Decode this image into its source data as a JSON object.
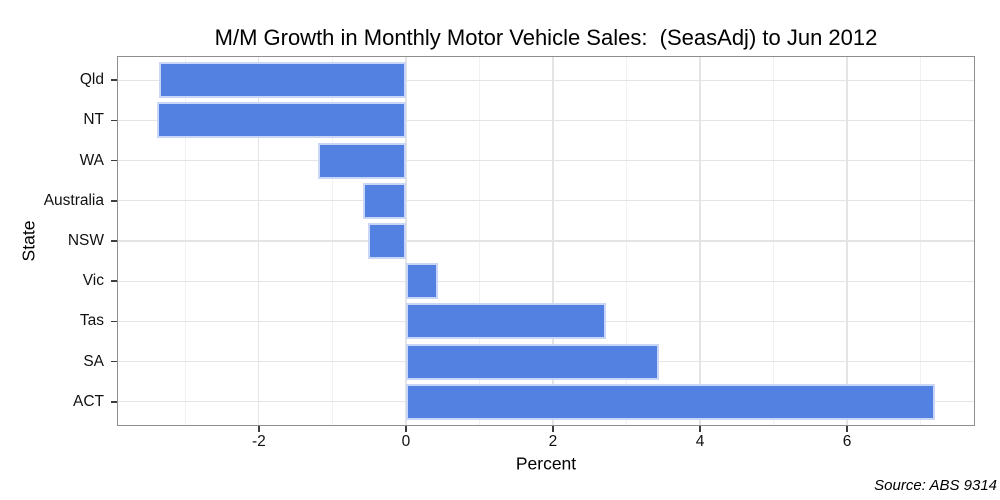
{
  "chart_data": {
    "type": "bar",
    "orientation": "horizontal",
    "title": "M/M Growth in Monthly Motor Vehicle Sales:  (SeasAdj) to Jun 2012",
    "xlabel": "Percent",
    "ylabel": "State",
    "categories": [
      "Qld",
      "NT",
      "WA",
      "Australia",
      "NSW",
      "Vic",
      "Tas",
      "SA",
      "ACT"
    ],
    "values": [
      -3.36,
      -3.38,
      -1.2,
      -0.59,
      -0.51,
      0.44,
      2.72,
      3.44,
      7.2
    ],
    "xlim": [
      -3.93,
      7.74
    ],
    "x_major_ticks": [
      -2,
      0,
      2,
      4,
      6
    ],
    "x_minor_gridlines": [
      -3,
      -1,
      1,
      3,
      5,
      7
    ],
    "grid": true,
    "legend": false,
    "source": "Source: ABS 9314",
    "colors": {
      "bar_fill": "#5281e2",
      "bar_border": "#c9d6f5",
      "grid_major": "#e4e4e4",
      "grid_minor": "#f1f1f1",
      "panel_border": "#8e8e8e",
      "tick": "#3d3d3d"
    }
  }
}
